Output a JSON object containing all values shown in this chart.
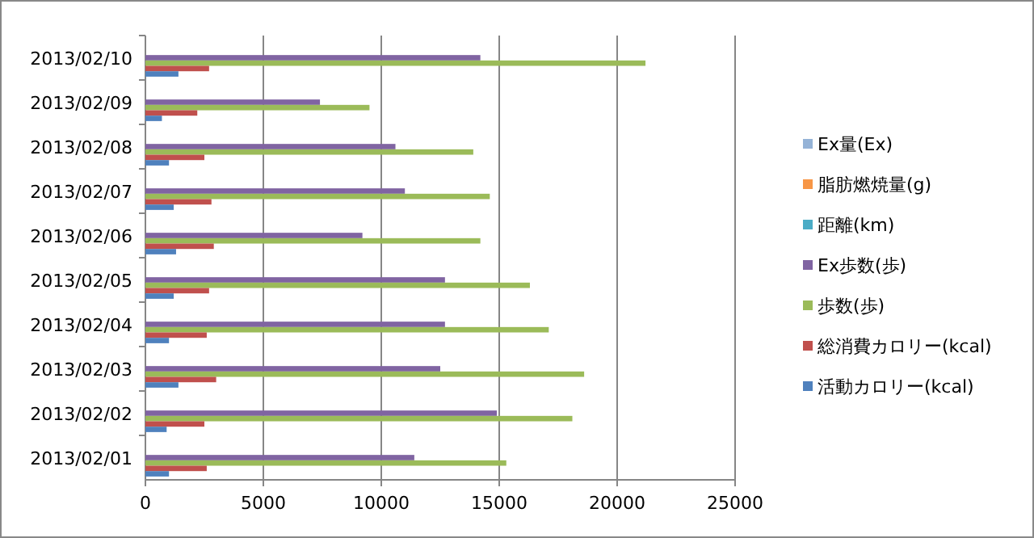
{
  "chart_data": {
    "type": "bar",
    "orientation": "horizontal",
    "categories": [
      "2013/02/10",
      "2013/02/09",
      "2013/02/08",
      "2013/02/07",
      "2013/02/06",
      "2013/02/05",
      "2013/02/04",
      "2013/02/03",
      "2013/02/02",
      "2013/02/01"
    ],
    "series": [
      {
        "name": "Ex量(Ex)",
        "color": "#95b3d7",
        "values": [
          0,
          0,
          0,
          0,
          0,
          0,
          0,
          0,
          0,
          0
        ]
      },
      {
        "name": "脂肪燃焼量(g)",
        "color": "#f79646",
        "values": [
          0,
          0,
          0,
          0,
          0,
          0,
          0,
          0,
          0,
          0
        ]
      },
      {
        "name": "距離(km)",
        "color": "#4bacc6",
        "values": [
          0,
          0,
          0,
          0,
          0,
          0,
          0,
          0,
          0,
          0
        ]
      },
      {
        "name": "Ex歩数(歩)",
        "color": "#8064a2",
        "values": [
          14200,
          7400,
          10600,
          11000,
          9200,
          12700,
          12700,
          12500,
          14900,
          11400
        ]
      },
      {
        "name": "歩数(歩)",
        "color": "#9bbb59",
        "values": [
          21200,
          9500,
          13900,
          14600,
          14200,
          16300,
          17100,
          18600,
          18100,
          15300
        ]
      },
      {
        "name": "総消費カロリー(kcal)",
        "color": "#c0504d",
        "values": [
          2700,
          2200,
          2500,
          2800,
          2900,
          2700,
          2600,
          3000,
          2500,
          2600
        ]
      },
      {
        "name": "活動カロリー(kcal)",
        "color": "#4f81bd",
        "values": [
          1400,
          700,
          1000,
          1200,
          1300,
          1200,
          1000,
          1400,
          900,
          1000
        ]
      }
    ],
    "xlim": [
      0,
      25000
    ],
    "xticks": [
      0,
      5000,
      10000,
      15000,
      20000,
      25000
    ],
    "grid": "x",
    "legend": "right"
  }
}
